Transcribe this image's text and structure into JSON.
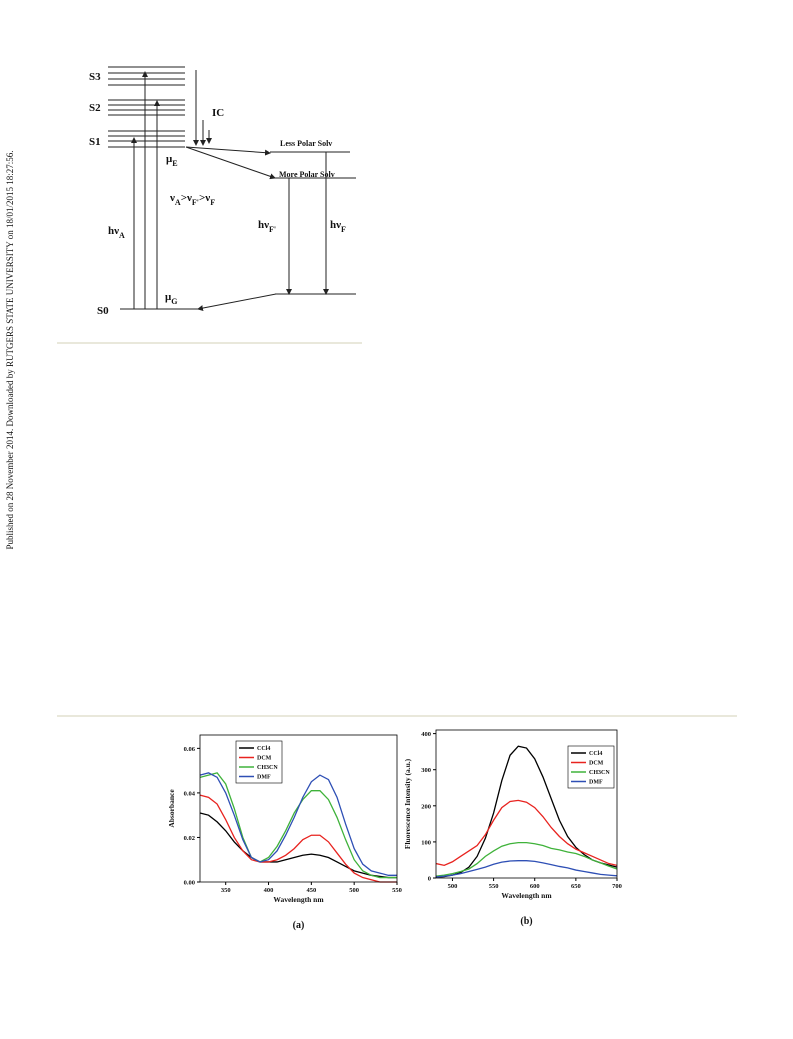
{
  "side_note": "Published on 28 November 2014. Downloaded by RUTGERS STATE UNIVERSITY on 18/01/2015 18:27:56.",
  "figure1": {
    "s3": "S3",
    "s2": "S2",
    "s1": "S1",
    "s0": "S0",
    "ic": "IC",
    "mu_e": {
      "base": "μ",
      "sub": "E"
    },
    "mu_g": {
      "base": "μ",
      "sub": "G"
    },
    "order": [
      {
        "base": "ν",
        "sub": "A"
      },
      {
        "base": ">ν",
        "sub": "F'"
      },
      {
        "base": ">ν",
        "sub": "F"
      }
    ],
    "h_nu_a": {
      "base": "hν",
      "sub": "A"
    },
    "h_nu_f_prime": {
      "base": "hν",
      "sub": "F'"
    },
    "h_nu_f": {
      "base": "hν",
      "sub": "F"
    },
    "less_polar": "Less Polar Solv",
    "more_polar": "More Polar Solv"
  },
  "chart_data": [
    {
      "type": "line",
      "caption": "(a)",
      "xlabel": "Wavelength nm",
      "ylabel": "Absorbance",
      "legend": "upper right",
      "x": [
        320,
        330,
        340,
        350,
        360,
        370,
        380,
        390,
        400,
        410,
        420,
        430,
        440,
        450,
        460,
        470,
        480,
        490,
        500,
        510,
        520,
        530,
        540,
        550
      ],
      "xlim": [
        320,
        550
      ],
      "xticks": [
        350,
        400,
        450,
        500,
        550
      ],
      "ylim": [
        0,
        0.066
      ],
      "yticks": [
        {
          "value": 0,
          "label": "0.00"
        },
        0.02,
        0.04,
        0.06
      ],
      "series": [
        {
          "name": "CCl4",
          "color": "#000000",
          "values": [
            0.031,
            0.03,
            0.027,
            0.023,
            0.018,
            0.014,
            0.011,
            0.009,
            0.009,
            0.009,
            0.01,
            0.011,
            0.012,
            0.0125,
            0.012,
            0.011,
            0.009,
            0.007,
            0.005,
            0.004,
            0.003,
            0.0025,
            0.002,
            0.002
          ]
        },
        {
          "name": "DCM",
          "color": "#e8231f",
          "values": [
            0.039,
            0.038,
            0.035,
            0.028,
            0.02,
            0.014,
            0.01,
            0.009,
            0.009,
            0.01,
            0.012,
            0.015,
            0.019,
            0.021,
            0.021,
            0.018,
            0.013,
            0.008,
            0.004,
            0.002,
            0.001,
            0,
            0,
            0
          ]
        },
        {
          "name": "CH3CN",
          "color": "#3fb23a",
          "values": [
            0.047,
            0.048,
            0.049,
            0.044,
            0.033,
            0.02,
            0.011,
            0.009,
            0.011,
            0.016,
            0.023,
            0.031,
            0.037,
            0.041,
            0.041,
            0.037,
            0.029,
            0.019,
            0.01,
            0.005,
            0.003,
            0.002,
            0.002,
            0.002
          ]
        },
        {
          "name": "DMF",
          "color": "#2e4fb5",
          "values": [
            0.048,
            0.049,
            0.047,
            0.04,
            0.03,
            0.019,
            0.011,
            0.009,
            0.01,
            0.014,
            0.021,
            0.029,
            0.038,
            0.045,
            0.048,
            0.046,
            0.038,
            0.026,
            0.015,
            0.008,
            0.005,
            0.004,
            0.003,
            0.003
          ]
        }
      ]
    },
    {
      "type": "line",
      "caption": "(b)",
      "xlabel": "Wavelength nm",
      "ylabel": "Fluorescence Intensity (a.u.)",
      "legend": "upper right",
      "x": [
        480,
        490,
        500,
        510,
        520,
        530,
        540,
        550,
        560,
        570,
        580,
        590,
        600,
        610,
        620,
        630,
        640,
        650,
        660,
        670,
        680,
        690,
        700
      ],
      "xlim": [
        480,
        700
      ],
      "xticks": [
        500,
        550,
        600,
        650,
        700
      ],
      "ylim": [
        0,
        410
      ],
      "yticks": [
        0,
        100,
        200,
        300,
        400
      ],
      "series": [
        {
          "name": "CCl4",
          "color": "#000000",
          "values": [
            2,
            4,
            8,
            15,
            30,
            60,
            110,
            180,
            270,
            340,
            365,
            360,
            330,
            280,
            220,
            160,
            115,
            85,
            65,
            50,
            42,
            36,
            30
          ]
        },
        {
          "name": "DCM",
          "color": "#e8231f",
          "values": [
            40,
            35,
            45,
            60,
            75,
            90,
            120,
            160,
            195,
            212,
            215,
            210,
            195,
            170,
            140,
            115,
            95,
            80,
            70,
            60,
            50,
            40,
            35
          ]
        },
        {
          "name": "CH3CN",
          "color": "#3fb23a",
          "values": [
            5,
            8,
            12,
            18,
            25,
            40,
            60,
            75,
            88,
            95,
            98,
            98,
            95,
            90,
            82,
            78,
            72,
            68,
            60,
            50,
            42,
            33,
            25
          ]
        },
        {
          "name": "DMF",
          "color": "#2e4fb5",
          "values": [
            3,
            5,
            8,
            12,
            18,
            24,
            30,
            38,
            44,
            47,
            48,
            48,
            46,
            42,
            37,
            32,
            28,
            22,
            18,
            14,
            10,
            8,
            6
          ]
        }
      ]
    }
  ]
}
